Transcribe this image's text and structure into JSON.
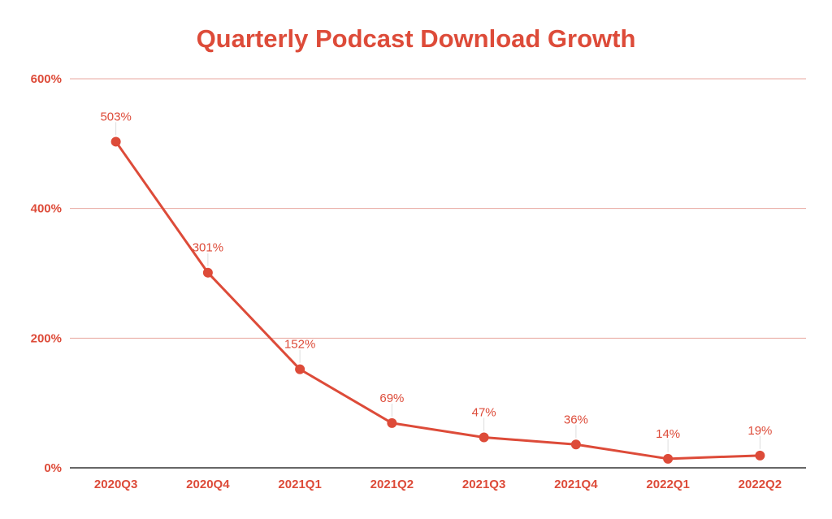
{
  "chart_data": {
    "type": "line",
    "title": "Quarterly Podcast Download Growth",
    "xlabel": "",
    "ylabel": "",
    "categories": [
      "2020Q3",
      "2020Q4",
      "2021Q1",
      "2021Q2",
      "2021Q3",
      "2021Q4",
      "2022Q1",
      "2022Q2"
    ],
    "series": [
      {
        "values": [
          503,
          301,
          152,
          69,
          47,
          36,
          14,
          19
        ],
        "data_labels": [
          "503%",
          "301%",
          "152%",
          "69%",
          "47%",
          "36%",
          "14%",
          "19%"
        ]
      }
    ],
    "ylim": [
      0,
      600
    ],
    "yticks": [
      0,
      200,
      400,
      600
    ],
    "ytick_labels": [
      "0%",
      "200%",
      "400%",
      "600%"
    ],
    "grid": true,
    "legend": "none",
    "colors": {
      "accent": "#dd4b39",
      "gridline": "#e8a79f",
      "axis": "#333333",
      "leader": "#dddddd"
    }
  }
}
